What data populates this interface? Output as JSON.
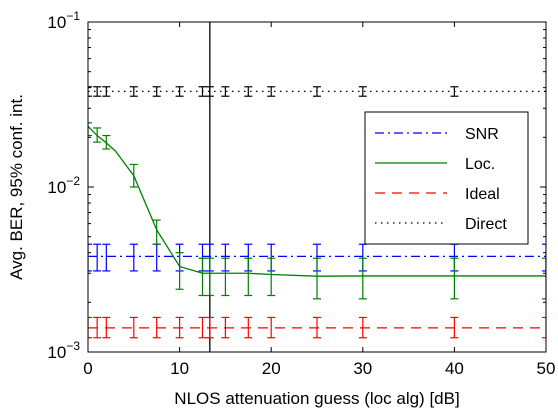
{
  "chart_data": {
    "type": "line",
    "xlabel": "NLOS attenuation guess (loc alg) [dB]",
    "ylabel": "Avg. BER, 95% conf. int.",
    "xlim": [
      0,
      50
    ],
    "ylim": [
      0.001,
      0.1
    ],
    "yscale": "log",
    "x_ticks": [
      0,
      10,
      20,
      30,
      40,
      50
    ],
    "x_tick_labels": [
      "0",
      "10",
      "20",
      "30",
      "40",
      "50"
    ],
    "y_ticks": [
      0.001,
      0.01,
      0.1
    ],
    "y_tick_labels": [
      {
        "base": "10",
        "exp": "−3"
      },
      {
        "base": "10",
        "exp": "−2"
      },
      {
        "base": "10",
        "exp": "−1"
      }
    ],
    "grid": false,
    "legend_position": "right",
    "vertical_line_x": 13.3,
    "series": [
      {
        "name": "SNR",
        "color": "#0000ff",
        "dash": "dashdot",
        "x": [
          0,
          50
        ],
        "y": [
          0.0038,
          0.0038
        ],
        "err_x": [
          0,
          1,
          2,
          5,
          7.5,
          10,
          12.5,
          13.3,
          15,
          17.5,
          20,
          25,
          30,
          40,
          50
        ],
        "err_low": 0.0031,
        "err_high": 0.0045
      },
      {
        "name": "Loc.",
        "color": "#008000",
        "dash": "solid",
        "x": [
          0,
          1,
          2,
          3,
          5,
          7.5,
          10,
          12.5,
          13.3,
          15,
          17.5,
          20,
          25,
          30,
          40,
          50
        ],
        "y": [
          0.0233,
          0.0205,
          0.0185,
          0.0165,
          0.0117,
          0.0055,
          0.0033,
          0.003,
          0.003,
          0.003,
          0.003,
          0.00295,
          0.00288,
          0.00289,
          0.00289,
          0.00289
        ],
        "err_x": [
          0,
          1,
          2,
          5,
          7.5,
          10,
          12.5,
          13.3,
          15,
          17.5,
          20,
          25,
          30,
          40,
          50
        ],
        "err_low": [
          0.0205,
          0.0187,
          0.017,
          0.01,
          0.0045,
          0.0024,
          0.0022,
          0.0022,
          0.0022,
          0.0022,
          0.0022,
          0.0021,
          0.0021,
          0.0021,
          0.0021
        ],
        "err_high": [
          0.0245,
          0.0228,
          0.0205,
          0.0137,
          0.0063,
          0.004,
          0.0037,
          0.0037,
          0.0037,
          0.0037,
          0.0037,
          0.0037,
          0.0037,
          0.0037,
          0.0037
        ]
      },
      {
        "name": "Ideal",
        "color": "#ff0000",
        "dash": "dashed",
        "x": [
          0,
          50
        ],
        "y": [
          0.0014,
          0.0014
        ],
        "err_x": [
          0,
          1,
          2,
          5,
          7.5,
          10,
          12.5,
          13.3,
          15,
          17.5,
          20,
          25,
          30,
          40,
          50
        ],
        "err_low": 0.00122,
        "err_high": 0.00162
      },
      {
        "name": "Direct",
        "color": "#000000",
        "dash": "dotted",
        "x": [
          0,
          50
        ],
        "y": [
          0.038,
          0.038
        ],
        "err_x": [
          0,
          1,
          2,
          5,
          7.5,
          10,
          12.5,
          13.3,
          15,
          17.5,
          20,
          25,
          30,
          40
        ],
        "err_low": 0.0355,
        "err_high": 0.0405
      }
    ]
  }
}
